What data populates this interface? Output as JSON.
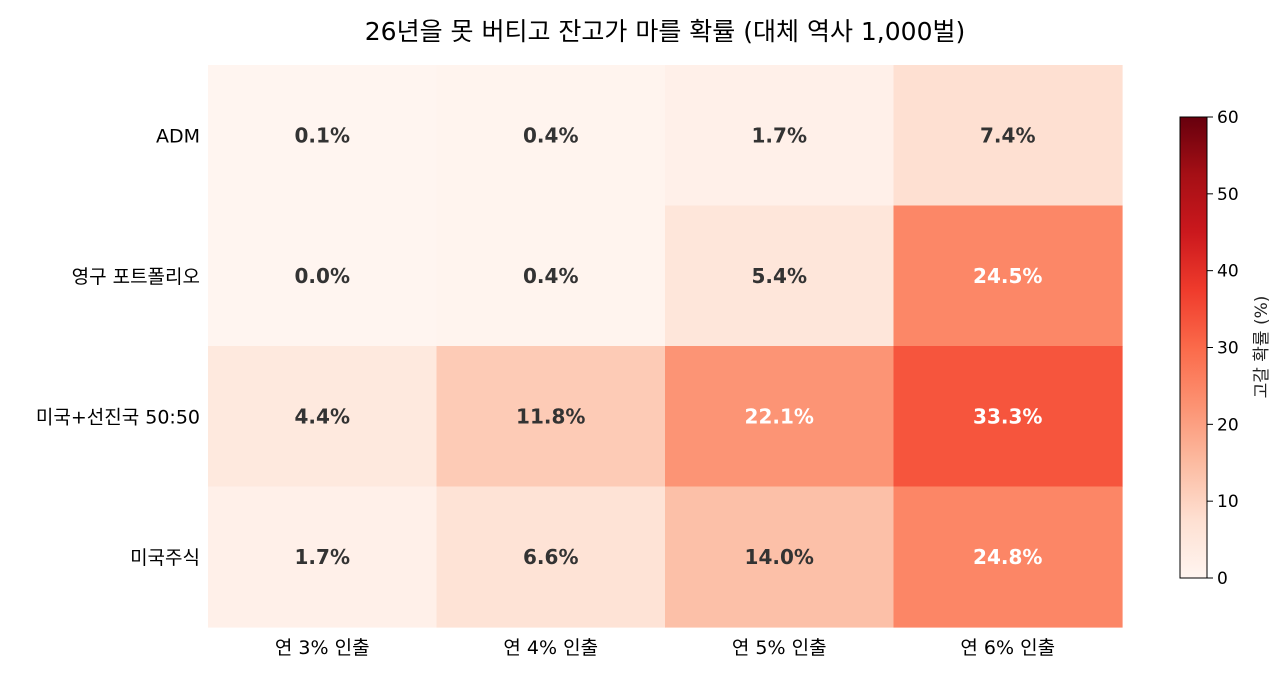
{
  "chart_data": {
    "type": "heatmap",
    "title": "26년을 못 버티고 잔고가 마를 확률 (대체 역사 1,000벌)",
    "rows": [
      "ADM",
      "영구 포트폴리오",
      "미국+선진국 50:50",
      "미국주식"
    ],
    "columns": [
      "연 3% 인출",
      "연 4% 인출",
      "연 5% 인출",
      "연 6% 인출"
    ],
    "values": [
      [
        0.1,
        0.4,
        1.7,
        7.4
      ],
      [
        0.0,
        0.4,
        5.4,
        24.5
      ],
      [
        4.4,
        11.8,
        22.1,
        33.3
      ],
      [
        1.7,
        6.6,
        14.0,
        24.8
      ]
    ],
    "cell_labels": [
      [
        "0.1%",
        "0.4%",
        "1.7%",
        "7.4%"
      ],
      [
        "0.0%",
        "0.4%",
        "5.4%",
        "24.5%"
      ],
      [
        "4.4%",
        "11.8%",
        "22.1%",
        "33.3%"
      ],
      [
        "1.7%",
        "6.6%",
        "14.0%",
        "24.8%"
      ]
    ],
    "colorbar": {
      "label": "고갈 확률 (%)",
      "range": [
        0,
        60
      ],
      "ticks": [
        "0",
        "10",
        "20",
        "30",
        "40",
        "50",
        "60"
      ],
      "colormap": "Reds"
    }
  }
}
